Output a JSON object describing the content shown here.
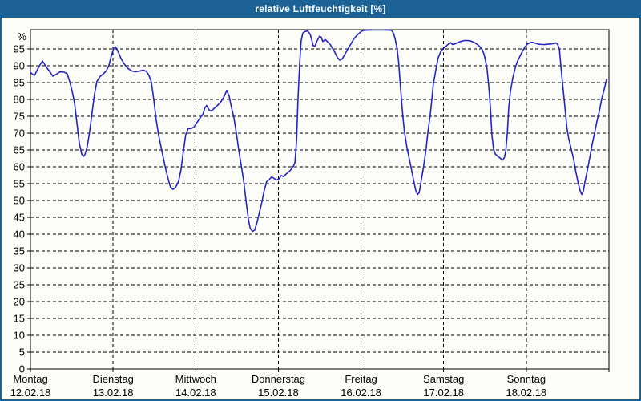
{
  "window": {
    "title": "relative Luftfeuchtigkeit [%]"
  },
  "colors": {
    "titlebar_bg": "#1d6296",
    "window_border": "#1d6296",
    "background": "#fdfefa",
    "curve": "#2323c8",
    "axis": "#000000",
    "label_text": "#000000",
    "title_text": "#ffffff"
  },
  "chart_data": {
    "type": "line",
    "title": "relative Luftfeuchtigkeit [%]",
    "ylabel": "%",
    "xlabel": "",
    "ylim": [
      0,
      100.8
    ],
    "xlim_hours": [
      0,
      168
    ],
    "grid": true,
    "legend": false,
    "y_ticks": [
      0,
      5,
      10,
      15,
      20,
      25,
      30,
      35,
      40,
      45,
      50,
      55,
      60,
      65,
      70,
      75,
      80,
      85,
      90,
      95
    ],
    "days": [
      {
        "label": "Montag",
        "date": "12.02.18"
      },
      {
        "label": "Dienstag",
        "date": "13.02.18"
      },
      {
        "label": "Mittwoch",
        "date": "14.02.18"
      },
      {
        "label": "Donnerstag",
        "date": "15.02.18"
      },
      {
        "label": "Freitag",
        "date": "16.02.18"
      },
      {
        "label": "Samstag",
        "date": "17.02.18"
      },
      {
        "label": "Sonntag",
        "date": "18.02.18"
      }
    ],
    "series": [
      {
        "name": "relative Luftfeuchtigkeit",
        "unit": "%",
        "x_unit": "hours",
        "points": [
          [
            0,
            88
          ],
          [
            0.7,
            87.4
          ],
          [
            1.2,
            87.2
          ],
          [
            2.3,
            89.4
          ],
          [
            3.5,
            91.4
          ],
          [
            4.7,
            89.5
          ],
          [
            5.8,
            88
          ],
          [
            6.5,
            86.9
          ],
          [
            7.4,
            87.4
          ],
          [
            8.6,
            88.2
          ],
          [
            9.8,
            88.1
          ],
          [
            10.7,
            87.6
          ],
          [
            11.4,
            85.3
          ],
          [
            12.1,
            82.5
          ],
          [
            12.8,
            79
          ],
          [
            13.5,
            73
          ],
          [
            14.2,
            67
          ],
          [
            14.9,
            63.8
          ],
          [
            15.4,
            63.1
          ],
          [
            15.8,
            63.6
          ],
          [
            16.5,
            66
          ],
          [
            17.2,
            70.5
          ],
          [
            17.9,
            76
          ],
          [
            18.6,
            81.5
          ],
          [
            19.3,
            85.3
          ],
          [
            20.2,
            86.8
          ],
          [
            21.2,
            87.6
          ],
          [
            22.1,
            88.6
          ],
          [
            22.8,
            90.2
          ],
          [
            23.5,
            93
          ],
          [
            24.2,
            95.2
          ],
          [
            24.7,
            95.6
          ],
          [
            25.4,
            94.3
          ],
          [
            26.3,
            92.2
          ],
          [
            27.2,
            90.6
          ],
          [
            28.2,
            89.3
          ],
          [
            29.3,
            88.5
          ],
          [
            30.5,
            88.2
          ],
          [
            31.6,
            88.4
          ],
          [
            32.8,
            88.7
          ],
          [
            33.7,
            88.3
          ],
          [
            34.4,
            87.2
          ],
          [
            35.1,
            85.3
          ],
          [
            35.8,
            80
          ],
          [
            36.5,
            74
          ],
          [
            37.2,
            69.5
          ],
          [
            38.2,
            64.5
          ],
          [
            39.1,
            60.2
          ],
          [
            40,
            56.3
          ],
          [
            40.7,
            53.9
          ],
          [
            41.4,
            53.3
          ],
          [
            42.1,
            53.8
          ],
          [
            43,
            55.6
          ],
          [
            43.7,
            59
          ],
          [
            44.4,
            64.5
          ],
          [
            45.1,
            69.5
          ],
          [
            45.8,
            71.3
          ],
          [
            46.8,
            71.4
          ],
          [
            47.5,
            71.8
          ],
          [
            48.4,
            73.2
          ],
          [
            49.3,
            74.6
          ],
          [
            50,
            75.4
          ],
          [
            50.7,
            77.6
          ],
          [
            51.2,
            78.2
          ],
          [
            51.9,
            76.8
          ],
          [
            52.6,
            76.6
          ],
          [
            53.5,
            77.5
          ],
          [
            54.4,
            78.3
          ],
          [
            55.4,
            79.4
          ],
          [
            56.3,
            81
          ],
          [
            57,
            82.7
          ],
          [
            57.7,
            81
          ],
          [
            58.4,
            77.5
          ],
          [
            59.1,
            74.5
          ],
          [
            59.8,
            70
          ],
          [
            60.5,
            65
          ],
          [
            61.2,
            60.5
          ],
          [
            61.9,
            56
          ],
          [
            62.6,
            50
          ],
          [
            63.3,
            44.5
          ],
          [
            63.8,
            41.8
          ],
          [
            64.5,
            40.8
          ],
          [
            65.1,
            41.2
          ],
          [
            65.8,
            43.5
          ],
          [
            66.5,
            46.5
          ],
          [
            67.2,
            49.5
          ],
          [
            67.9,
            53
          ],
          [
            68.6,
            55.6
          ],
          [
            69.3,
            56.1
          ],
          [
            70,
            57
          ],
          [
            70.7,
            56.6
          ],
          [
            71.4,
            56.1
          ],
          [
            72.1,
            56.3
          ],
          [
            72.8,
            57.4
          ],
          [
            73.5,
            57.1
          ],
          [
            74.2,
            57.8
          ],
          [
            74.9,
            58.4
          ],
          [
            75.6,
            59.1
          ],
          [
            76.3,
            60.1
          ],
          [
            76.8,
            61.2
          ],
          [
            77.3,
            68
          ],
          [
            77.7,
            80
          ],
          [
            78.2,
            91
          ],
          [
            78.6,
            97.3
          ],
          [
            79.1,
            99.7
          ],
          [
            79.8,
            100.2
          ],
          [
            80.5,
            100.3
          ],
          [
            81.2,
            99.4
          ],
          [
            81.7,
            97.7
          ],
          [
            82.1,
            96
          ],
          [
            82.6,
            95.8
          ],
          [
            83.3,
            97.5
          ],
          [
            84,
            98.8
          ],
          [
            84.5,
            98.4
          ],
          [
            84.9,
            97.2
          ],
          [
            85.6,
            97.8
          ],
          [
            86.3,
            97.1
          ],
          [
            87,
            96.4
          ],
          [
            87.7,
            95.2
          ],
          [
            88.4,
            94
          ],
          [
            89.1,
            92.5
          ],
          [
            89.8,
            91.7
          ],
          [
            90.5,
            92
          ],
          [
            91.2,
            93.2
          ],
          [
            91.9,
            94.5
          ],
          [
            92.6,
            95.7
          ],
          [
            93.3,
            96.9
          ],
          [
            94,
            98.1
          ],
          [
            94.7,
            98.9
          ],
          [
            95.4,
            99.6
          ],
          [
            96.1,
            100.2
          ],
          [
            96.8,
            100.5
          ],
          [
            98,
            100.6
          ],
          [
            99.5,
            100.6
          ],
          [
            101,
            100.6
          ],
          [
            102.5,
            100.6
          ],
          [
            104,
            100.6
          ],
          [
            104.9,
            100.5
          ],
          [
            105.5,
            99.5
          ],
          [
            105.9,
            98
          ],
          [
            106.4,
            95.5
          ],
          [
            106.9,
            91.5
          ],
          [
            107.3,
            86
          ],
          [
            107.7,
            80.5
          ],
          [
            108.1,
            75.5
          ],
          [
            108.6,
            70.5
          ],
          [
            109.3,
            66
          ],
          [
            110,
            62.5
          ],
          [
            110.7,
            59
          ],
          [
            111.4,
            55.3
          ],
          [
            111.9,
            53
          ],
          [
            112.4,
            51.8
          ],
          [
            112.9,
            52.3
          ],
          [
            113.5,
            56
          ],
          [
            114.2,
            60.3
          ],
          [
            114.9,
            65.3
          ],
          [
            115.4,
            70
          ],
          [
            116.1,
            75.5
          ],
          [
            116.6,
            80.3
          ],
          [
            117,
            84.5
          ],
          [
            117.7,
            88.5
          ],
          [
            118.4,
            92.3
          ],
          [
            119.1,
            94
          ],
          [
            119.8,
            95.1
          ],
          [
            120.8,
            95.9
          ],
          [
            121.5,
            96.6
          ],
          [
            121.9,
            96.9
          ],
          [
            122.6,
            96.3
          ],
          [
            123.3,
            96.5
          ],
          [
            124.3,
            97
          ],
          [
            125.2,
            97.3
          ],
          [
            126.1,
            97.5
          ],
          [
            127,
            97.5
          ],
          [
            128,
            97.3
          ],
          [
            128.9,
            96.9
          ],
          [
            129.8,
            96.3
          ],
          [
            130.5,
            95.7
          ],
          [
            131.2,
            94.8
          ],
          [
            131.7,
            93.5
          ],
          [
            132.1,
            91.8
          ],
          [
            132.6,
            89
          ],
          [
            133.1,
            84
          ],
          [
            133.6,
            77
          ],
          [
            134,
            69.5
          ],
          [
            134.5,
            65.3
          ],
          [
            135,
            63.8
          ],
          [
            135.7,
            63.1
          ],
          [
            136.4,
            62.6
          ],
          [
            137.1,
            62
          ],
          [
            137.6,
            62.7
          ],
          [
            138,
            64.5
          ],
          [
            138.5,
            70
          ],
          [
            138.9,
            77.5
          ],
          [
            139.4,
            82.5
          ],
          [
            140.1,
            86.5
          ],
          [
            140.8,
            89.5
          ],
          [
            141.5,
            91.5
          ],
          [
            142.2,
            92.9
          ],
          [
            142.9,
            94.3
          ],
          [
            143.6,
            95.6
          ],
          [
            144.3,
            96.4
          ],
          [
            145,
            96.8
          ],
          [
            145.7,
            97
          ],
          [
            146.6,
            96.7
          ],
          [
            147.6,
            96.4
          ],
          [
            148.5,
            96.3
          ],
          [
            149.4,
            96.3
          ],
          [
            150.4,
            96.4
          ],
          [
            151.3,
            96.5
          ],
          [
            152,
            96.6
          ],
          [
            152.7,
            96.8
          ],
          [
            153.1,
            96.3
          ],
          [
            153.6,
            95
          ],
          [
            154,
            90.5
          ],
          [
            154.5,
            85
          ],
          [
            155,
            80
          ],
          [
            155.4,
            75.5
          ],
          [
            155.8,
            71.5
          ],
          [
            156.3,
            68.5
          ],
          [
            157,
            65.5
          ],
          [
            157.7,
            62.5
          ],
          [
            158.4,
            58.5
          ],
          [
            159.1,
            55
          ],
          [
            159.6,
            53
          ],
          [
            160.1,
            51.8
          ],
          [
            160.5,
            52.5
          ],
          [
            161,
            55.3
          ],
          [
            161.7,
            58.8
          ],
          [
            162.4,
            62.5
          ],
          [
            163.1,
            66.5
          ],
          [
            163.8,
            70
          ],
          [
            164.5,
            73.5
          ],
          [
            165.2,
            76.5
          ],
          [
            165.9,
            80.2
          ],
          [
            166.6,
            83
          ],
          [
            167.3,
            85.9
          ]
        ]
      }
    ]
  }
}
